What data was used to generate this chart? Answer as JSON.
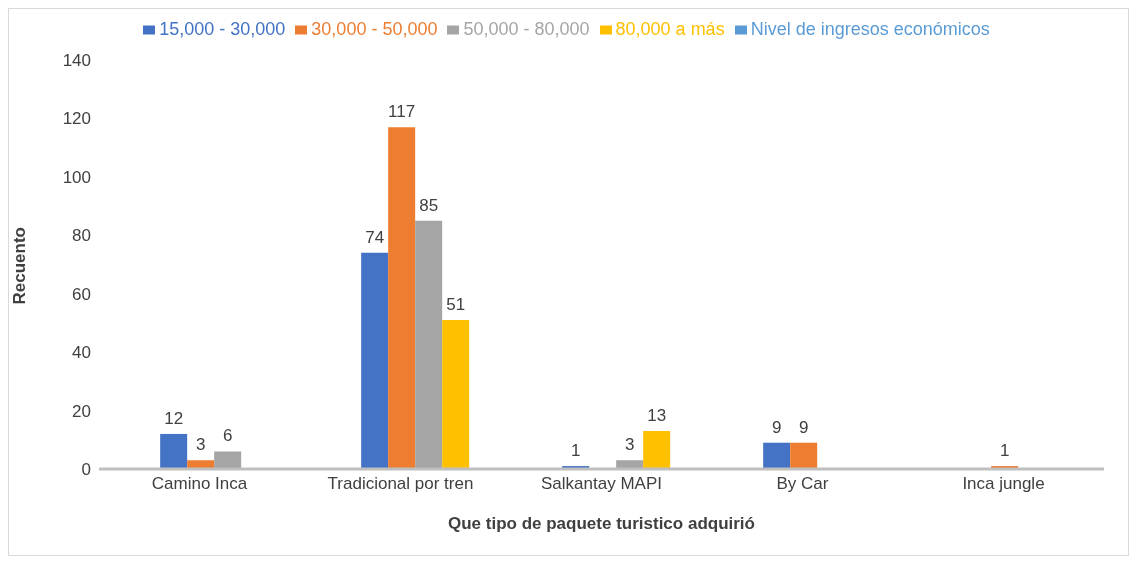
{
  "chart_data": {
    "type": "bar",
    "xlabel": "Que tipo de paquete turistico adquirió",
    "ylabel": "Recuento",
    "categories": [
      "Camino Inca",
      "Tradicional por tren",
      "Salkantay MAPI",
      "By Car",
      "Inca jungle"
    ],
    "series": [
      {
        "name": "Nivel de ingresos económicos",
        "color": "#5b9bd5",
        "values": [
          null,
          null,
          null,
          null,
          null
        ]
      },
      {
        "name": "15,000 - 30,000",
        "color": "#4472c4",
        "values": [
          12,
          74,
          1,
          9,
          null
        ]
      },
      {
        "name": "30,000 - 50,000",
        "color": "#ed7d31",
        "values": [
          3,
          117,
          null,
          9,
          1
        ]
      },
      {
        "name": "50,000 - 80,000",
        "color": "#a5a5a5",
        "values": [
          6,
          85,
          3,
          null,
          null
        ]
      },
      {
        "name": "80,000 a más",
        "color": "#ffc000",
        "values": [
          null,
          51,
          13,
          null,
          null
        ]
      }
    ],
    "ylim": [
      0,
      140
    ],
    "yticks": [
      0,
      20,
      40,
      60,
      80,
      100,
      120,
      140
    ],
    "legend": "top",
    "data_labels": true
  }
}
